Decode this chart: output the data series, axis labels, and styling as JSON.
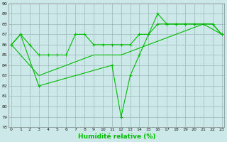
{
  "line1_x": [
    0,
    1,
    2,
    3,
    4,
    5,
    6,
    7,
    8,
    9,
    10,
    11,
    12,
    13,
    14,
    15,
    16,
    17,
    18,
    19,
    20,
    21,
    22,
    23
  ],
  "line1_y": [
    86,
    87,
    86,
    85,
    85,
    85,
    85,
    87,
    87,
    86,
    86,
    86,
    86,
    86,
    87,
    87,
    88,
    88,
    88,
    88,
    88,
    88,
    88,
    87
  ],
  "line2_x": [
    0,
    3,
    6,
    9,
    12,
    15,
    18,
    21,
    23
  ],
  "line2_y": [
    86,
    83,
    84,
    85,
    85,
    86,
    87,
    88,
    87
  ],
  "line3_x": [
    0,
    1,
    3,
    11,
    12,
    13,
    14,
    15,
    16,
    17,
    18,
    19,
    20,
    21,
    22,
    23
  ],
  "line3_y": [
    86,
    87,
    82,
    84,
    79,
    83,
    85,
    87,
    89,
    88,
    88,
    88,
    88,
    88,
    88,
    87
  ],
  "ylim": [
    78,
    90
  ],
  "xlim": [
    -0.3,
    23.3
  ],
  "yticks": [
    78,
    79,
    80,
    81,
    82,
    83,
    84,
    85,
    86,
    87,
    88,
    89,
    90
  ],
  "xticks": [
    0,
    1,
    2,
    3,
    4,
    5,
    6,
    7,
    8,
    9,
    10,
    11,
    12,
    13,
    14,
    15,
    16,
    17,
    18,
    19,
    20,
    21,
    22,
    23
  ],
  "xlabel": "Humidité relative (%)",
  "line_color": "#00bb00",
  "bg_color": "#cce8e8",
  "grid_color": "#99bbbb",
  "grid_major_color": "#aacccc"
}
